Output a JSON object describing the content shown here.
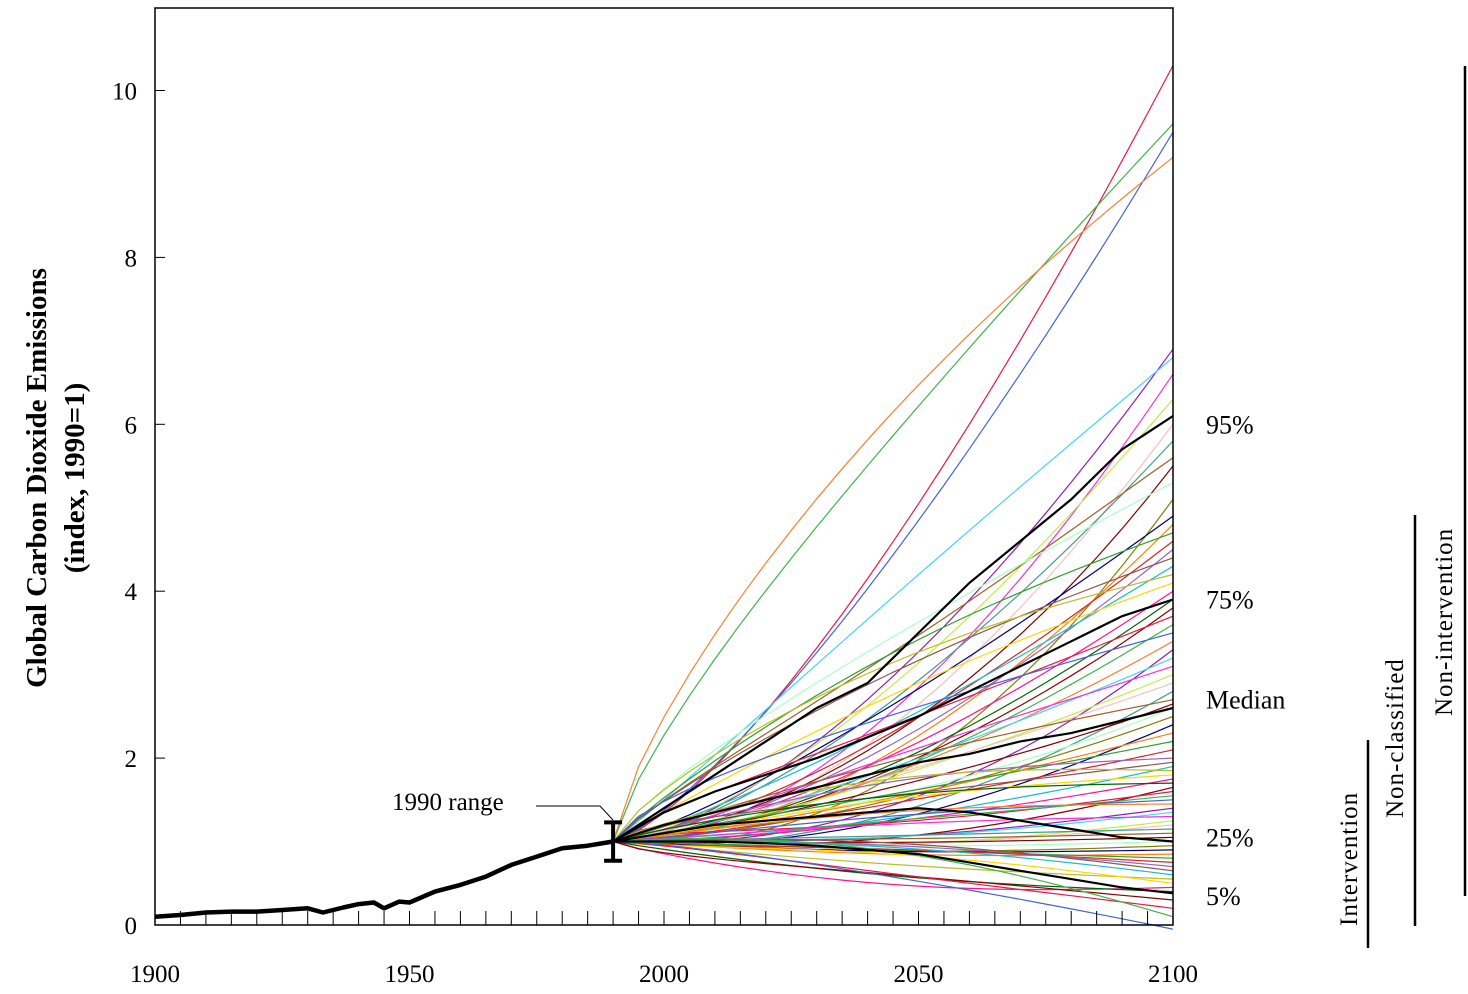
{
  "chart_data": {
    "type": "line",
    "ylabel_line1": "Global Carbon Dioxide Emissions",
    "ylabel_line2": "(index, 1990=1)",
    "xlim": [
      1900,
      2100
    ],
    "ylim": [
      0,
      10
    ],
    "x_ticks": [
      1900,
      1950,
      2000,
      2050,
      2100
    ],
    "y_ticks": [
      0,
      2,
      4,
      6,
      8,
      10
    ],
    "annotation": "1990 range",
    "range_1990": {
      "year": 1990,
      "low": 0.77,
      "high": 1.23
    },
    "historical": {
      "x": [
        1900,
        1905,
        1910,
        1915,
        1920,
        1925,
        1930,
        1933,
        1937,
        1940,
        1943,
        1945,
        1948,
        1950,
        1955,
        1960,
        1965,
        1970,
        1975,
        1980,
        1985,
        1990
      ],
      "y": [
        0.1,
        0.12,
        0.15,
        0.16,
        0.16,
        0.18,
        0.2,
        0.15,
        0.21,
        0.25,
        0.27,
        0.2,
        0.28,
        0.27,
        0.4,
        0.48,
        0.58,
        0.72,
        0.82,
        0.92,
        0.95,
        1.0
      ]
    },
    "percentile_curves": [
      {
        "name": "95%",
        "x": [
          1990,
          2000,
          2010,
          2020,
          2030,
          2040,
          2050,
          2060,
          2070,
          2080,
          2090,
          2100
        ],
        "y": [
          1.0,
          1.4,
          1.8,
          2.2,
          2.6,
          2.9,
          3.5,
          4.1,
          4.6,
          5.1,
          5.7,
          6.1
        ]
      },
      {
        "name": "75%",
        "x": [
          1990,
          2000,
          2010,
          2020,
          2030,
          2040,
          2050,
          2060,
          2070,
          2080,
          2090,
          2100
        ],
        "y": [
          1.0,
          1.35,
          1.6,
          1.8,
          2.0,
          2.25,
          2.5,
          2.8,
          3.1,
          3.4,
          3.7,
          3.9
        ]
      },
      {
        "name": "Median",
        "x": [
          1990,
          2000,
          2010,
          2020,
          2030,
          2040,
          2050,
          2060,
          2070,
          2080,
          2090,
          2100
        ],
        "y": [
          1.0,
          1.2,
          1.35,
          1.5,
          1.65,
          1.8,
          1.95,
          2.05,
          2.2,
          2.3,
          2.45,
          2.6
        ]
      },
      {
        "name": "25%",
        "x": [
          1990,
          2000,
          2010,
          2020,
          2030,
          2040,
          2050,
          2060,
          2070,
          2080,
          2090,
          2100
        ],
        "y": [
          1.0,
          1.1,
          1.2,
          1.25,
          1.3,
          1.35,
          1.4,
          1.35,
          1.25,
          1.15,
          1.05,
          1.0
        ]
      },
      {
        "name": "5%",
        "x": [
          1990,
          2000,
          2010,
          2020,
          2030,
          2040,
          2050,
          2060,
          2070,
          2080,
          2090,
          2100
        ],
        "y": [
          1.0,
          1.0,
          1.0,
          0.98,
          0.95,
          0.9,
          0.85,
          0.75,
          0.65,
          0.55,
          0.45,
          0.38
        ]
      }
    ],
    "scenario_finals": [
      10.3,
      9.6,
      9.5,
      9.2,
      6.9,
      6.8,
      6.6,
      6.3,
      6.0,
      5.8,
      5.6,
      5.5,
      5.3,
      5.1,
      4.9,
      4.8,
      4.7,
      4.6,
      4.5,
      4.4,
      4.3,
      4.2,
      4.1,
      4.0,
      3.9,
      3.8,
      3.7,
      3.6,
      3.5,
      3.4,
      3.3,
      3.2,
      3.1,
      3.0,
      2.9,
      2.8,
      2.7,
      2.65,
      2.6,
      2.5,
      2.4,
      2.3,
      2.2,
      2.1,
      2.0,
      1.95,
      1.9,
      1.85,
      1.8,
      1.75,
      1.7,
      1.65,
      1.6,
      1.55,
      1.5,
      1.45,
      1.4,
      1.35,
      1.3,
      1.25,
      1.2,
      1.15,
      1.1,
      1.05,
      1.0,
      0.95,
      0.9,
      0.85,
      0.8,
      0.75,
      0.7,
      0.65,
      0.6,
      0.55,
      0.5,
      0.45,
      0.4,
      0.3,
      0.2,
      0.1,
      -0.05
    ],
    "category_labels": [
      "Intervention",
      "Non-classified",
      "Non-intervention"
    ]
  },
  "colors": {
    "axis": "#000000",
    "historical": "#000000",
    "palette": [
      "#e6194b",
      "#3cb44b",
      "#4363d8",
      "#f58231",
      "#911eb4",
      "#42d4f4",
      "#f032e6",
      "#bfef45",
      "#fabebe",
      "#469990",
      "#9a6324",
      "#800000",
      "#aaffc3",
      "#808000",
      "#000075",
      "#ff7f0e",
      "#2ca02c",
      "#d62728",
      "#9467bd",
      "#8c564b",
      "#17becf",
      "#bcbd22",
      "#ffd700",
      "#ff1493",
      "#006400",
      "#8b0000"
    ]
  }
}
